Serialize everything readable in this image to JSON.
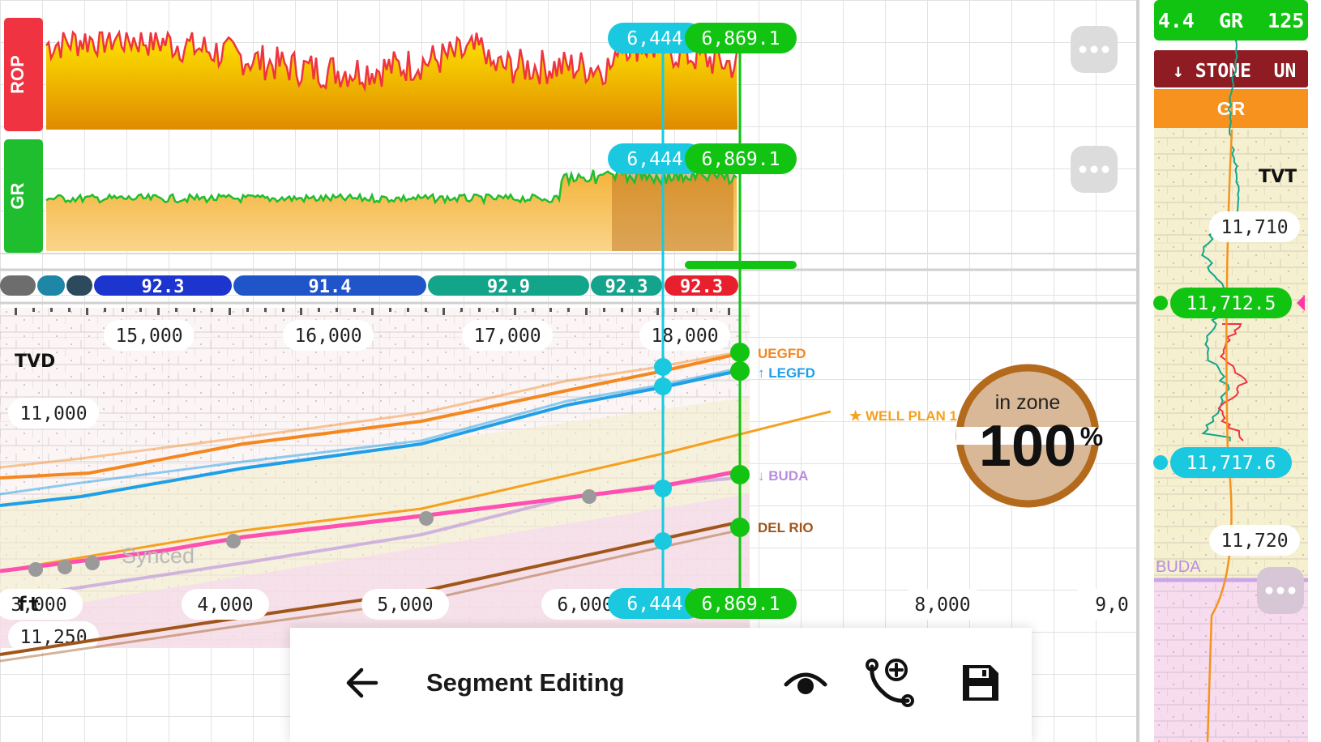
{
  "tracks": {
    "rop": {
      "label": "ROP",
      "color": "#ef3340"
    },
    "gr": {
      "label": "GR",
      "color": "#1fbe2e"
    }
  },
  "markers": {
    "cyan": {
      "label": "6,444",
      "color": "#1ac9e0"
    },
    "green": {
      "label": "6,869.1",
      "color": "#12c412"
    }
  },
  "segments": [
    {
      "label": "",
      "color": "#6d6d6d"
    },
    {
      "label": "",
      "color": "#1e86a6"
    },
    {
      "label": "",
      "color": "#2c4a5c"
    },
    {
      "label": "92.3",
      "color": "#1c35cf"
    },
    {
      "label": "91.4",
      "color": "#1f55c9"
    },
    {
      "label": "92.9",
      "color": "#13a58a"
    },
    {
      "label": "92.3",
      "color": "#14a48c"
    },
    {
      "label": "92.3",
      "color": "#e8202e"
    }
  ],
  "md_axis": {
    "ticks": [
      "15,000",
      "16,000",
      "17,000",
      "18,000"
    ]
  },
  "tvd": {
    "label": "TVD",
    "ticks": [
      "11,000",
      "11,250"
    ]
  },
  "vs_axis": {
    "unit": "ft",
    "ticks": [
      "3,000",
      "4,000",
      "5,000",
      "6,000",
      "8,000",
      "9,0"
    ]
  },
  "formations": [
    {
      "name": "UEGFD",
      "prefix": "",
      "color": "#f5871f"
    },
    {
      "name": "LEGFD",
      "prefix": "↑",
      "color": "#1f9fe8"
    },
    {
      "name": "WELL PLAN 1",
      "prefix": "★",
      "color": "#f5a01f"
    },
    {
      "name": "BUDA",
      "prefix": "↓",
      "color": "#b98ce0"
    },
    {
      "name": "DEL RIO",
      "prefix": "",
      "color": "#a0561a"
    }
  ],
  "synced_label": "Synced",
  "in_zone": {
    "label": "in zone",
    "value": "100",
    "unit": "%",
    "percent": 100
  },
  "right_panel": {
    "header": "4.4  GR  125",
    "stone": "↓ STONE  UN",
    "gr_tab": "GR",
    "tvt_label": "TVT",
    "ticks": [
      "11,710",
      "11,720"
    ],
    "green_value": "11,712.5",
    "cyan_value": "11,717.6",
    "buda_label": "BUDA"
  },
  "toolbar": {
    "title": "Segment Editing"
  },
  "colors": {
    "uegfd": "#f5871f",
    "legfd": "#1f9fe8",
    "plan": "#f5a01f",
    "buda": "#ff4fb0",
    "budaLow": "#b98ce0",
    "delrio": "#a0561a"
  }
}
